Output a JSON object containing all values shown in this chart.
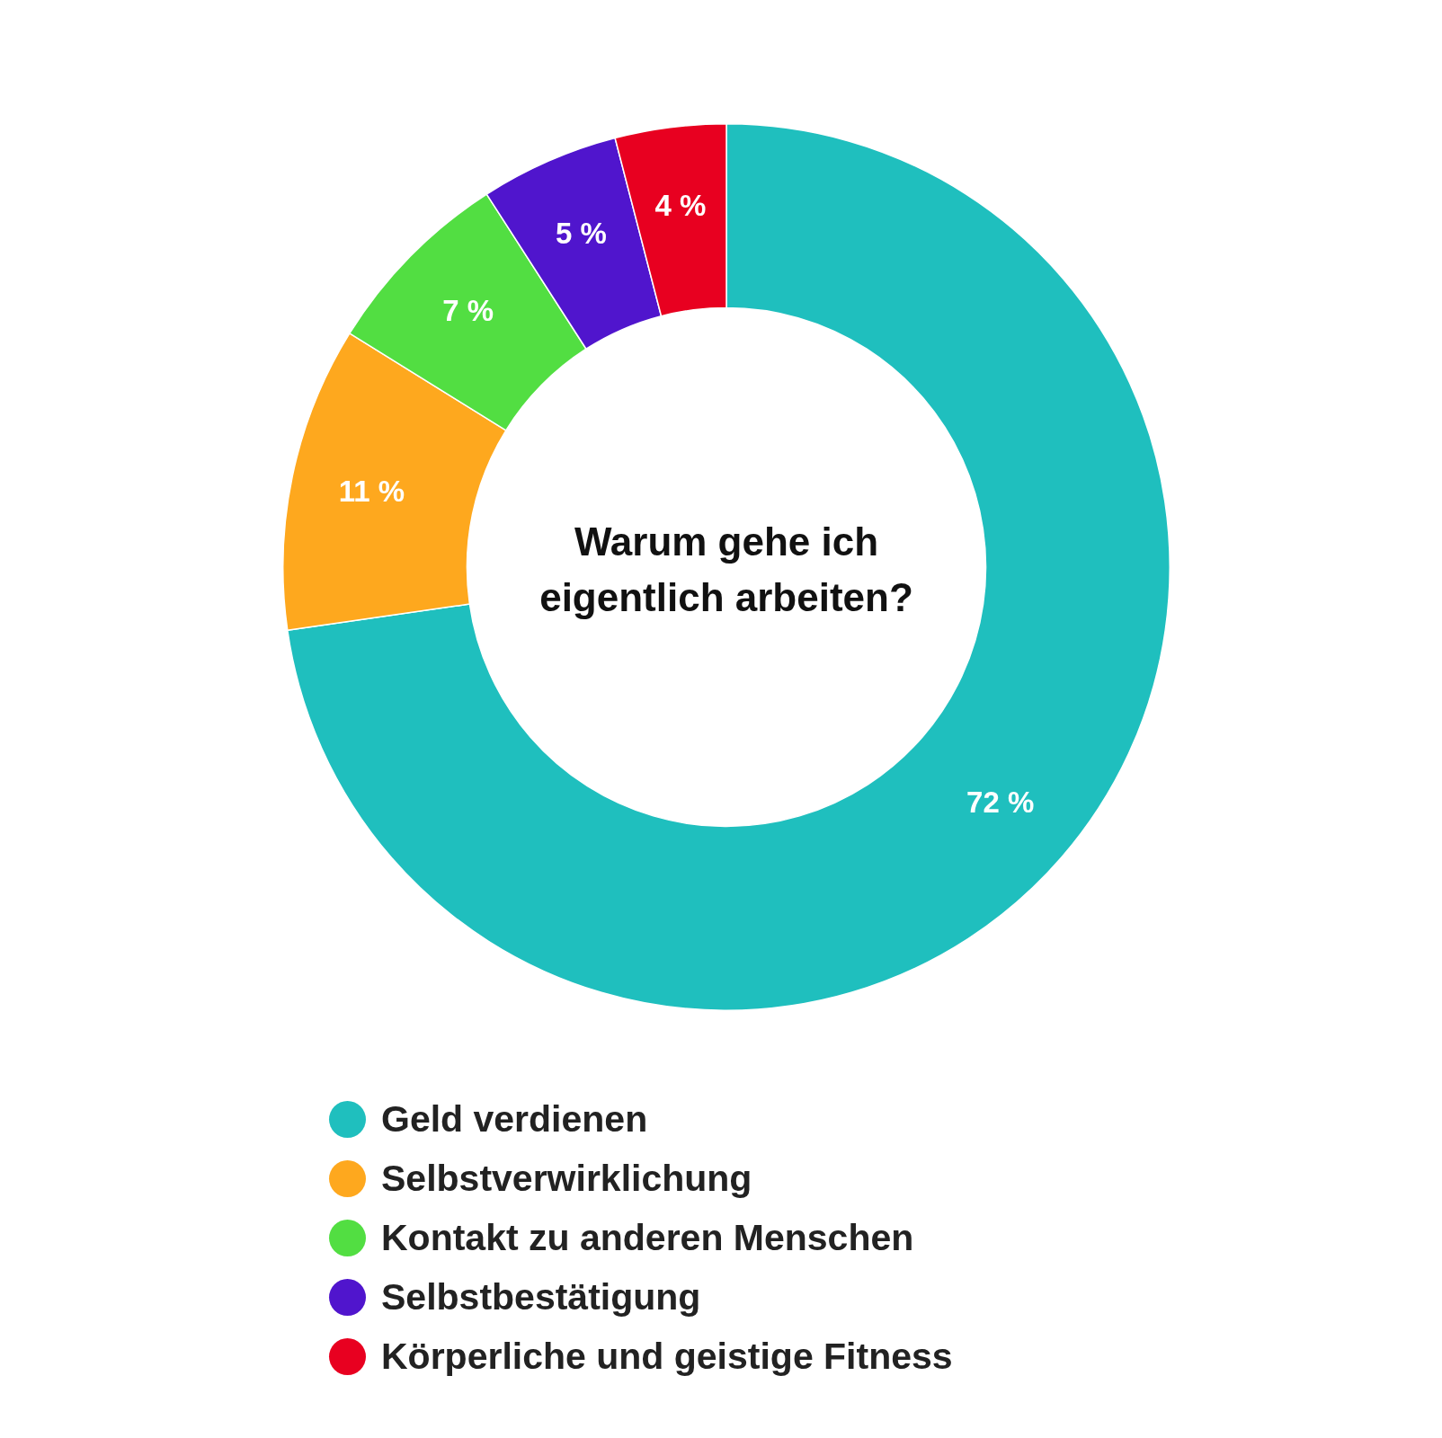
{
  "chart_data": {
    "type": "donut",
    "title": "Warum gehe ich eigentlich arbeiten?",
    "categories": [
      "Geld verdienen",
      "Selbstverwirklichung",
      "Kontakt zu anderen Menschen",
      "Selbstbestätigung",
      "Körperliche und geistige Fitness"
    ],
    "values": [
      72,
      11,
      7,
      5,
      4
    ],
    "colors": [
      "#1fbfbe",
      "#fea81e",
      "#52de42",
      "#5015cd",
      "#e80020"
    ],
    "value_labels": [
      "72 %",
      "11 %",
      "7 %",
      "5 %",
      "4 %"
    ],
    "legend": "bottom"
  }
}
